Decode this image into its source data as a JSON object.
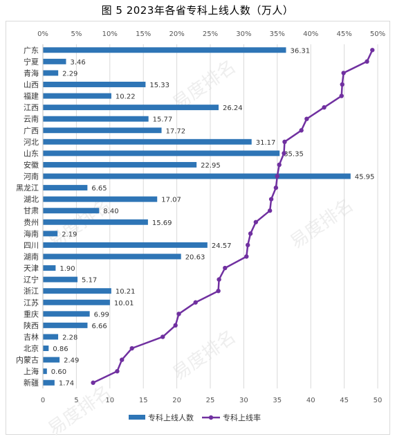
{
  "chart_data": {
    "type": "bar+line",
    "title": "图 5 2023年各省专科上线人数（万人）",
    "categories": [
      "广东",
      "宁夏",
      "青海",
      "山西",
      "福建",
      "江西",
      "云南",
      "广西",
      "河北",
      "山东",
      "安徽",
      "河南",
      "黑龙江",
      "湖北",
      "甘肃",
      "贵州",
      "海南",
      "四川",
      "湖南",
      "天津",
      "辽宁",
      "浙江",
      "江苏",
      "重庆",
      "陕西",
      "吉林",
      "北京",
      "内蒙古",
      "上海",
      "新疆"
    ],
    "series": [
      {
        "name": "专科上线人数",
        "kind": "bar",
        "axis": "bottom",
        "color": "#2e75b6",
        "values": [
          36.31,
          3.46,
          2.29,
          15.33,
          10.22,
          26.24,
          15.77,
          17.72,
          31.17,
          35.35,
          22.95,
          45.95,
          6.65,
          17.07,
          8.4,
          15.69,
          2.19,
          24.57,
          20.63,
          1.9,
          5.17,
          10.21,
          10.01,
          6.99,
          6.66,
          2.28,
          0.86,
          2.49,
          0.6,
          1.74
        ],
        "labels": [
          "36.31",
          "3.46",
          "2.29",
          "15.33",
          "10.22",
          "26.24",
          "15.77",
          "17.72",
          "31.17",
          "35.35",
          "22.95",
          "45.95",
          "6.65",
          "17.07",
          "8.40",
          "15.69",
          "2.19",
          "24.57",
          "20.63",
          "1.90",
          "5.17",
          "10.21",
          "10.01",
          "6.99",
          "6.66",
          "2.28",
          "0.86",
          "2.49",
          "0.60",
          "1.74"
        ]
      },
      {
        "name": "专科上线率",
        "kind": "line",
        "axis": "top",
        "color": "#7030a0",
        "values": [
          49.2,
          48.4,
          44.9,
          44.7,
          44.6,
          42.0,
          39.4,
          38.6,
          36.1,
          36.0,
          35.3,
          35.0,
          34.8,
          34.1,
          33.9,
          31.8,
          31.0,
          30.6,
          30.4,
          27.2,
          26.3,
          26.2,
          22.8,
          20.3,
          19.8,
          17.9,
          13.3,
          11.8,
          11.1,
          7.5
        ]
      }
    ],
    "x_bottom": {
      "ticks": [
        "0",
        "5",
        "10",
        "15",
        "20",
        "25",
        "30",
        "35",
        "40",
        "45",
        "50"
      ],
      "range": [
        0,
        50
      ]
    },
    "x_top": {
      "ticks": [
        "0%",
        "5%",
        "10%",
        "15%",
        "20%",
        "25%",
        "30%",
        "35%",
        "40%",
        "45%",
        "50%"
      ],
      "range": [
        0,
        50
      ]
    },
    "grid": true,
    "legend_position": "bottom"
  },
  "watermark": "易度排名"
}
